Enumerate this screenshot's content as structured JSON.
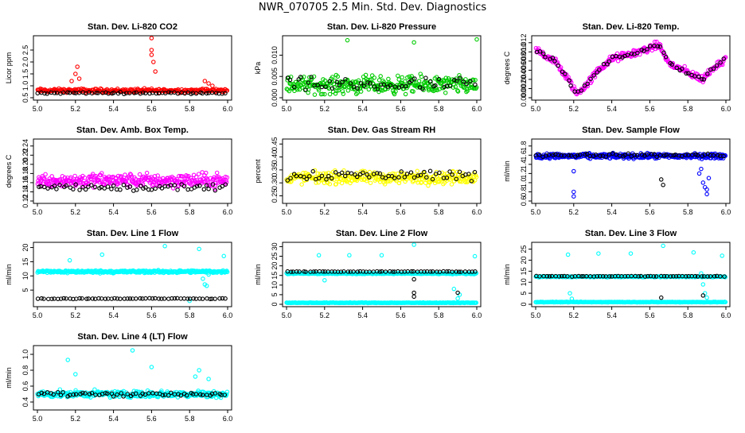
{
  "page_title": "NWR_070705  2.5 Min. Std. Dev. Diagnostics",
  "colors": {
    "red": "#ff0000",
    "green": "#00cc00",
    "magenta": "#ff00ff",
    "yellow": "#ffff00",
    "blue": "#0000ff",
    "cyan": "#00ffff",
    "black": "#000000"
  },
  "chart_data": [
    {
      "type": "scatter",
      "title": "Stan. Dev. Li-820 CO2",
      "ylabel": "Licor ppm",
      "xlim": [
        5.0,
        6.0
      ],
      "xticks": [
        "5.0",
        "5.2",
        "5.4",
        "5.6",
        "5.8",
        "6.0"
      ],
      "ylim": [
        0.5,
        3.0
      ],
      "yticks": [
        0.5,
        1.0,
        1.5,
        2.0,
        2.5
      ],
      "yticklabels": [
        "0.5",
        "1.0",
        "1.5",
        "2.0",
        "2.5"
      ],
      "series": [
        {
          "name": "all",
          "color": "red",
          "base": 0.8,
          "noise": 0.12,
          "n": 260,
          "extra_x": [
            5.2,
            5.21,
            5.22,
            5.18,
            5.6,
            5.6,
            5.61,
            5.62,
            5.6,
            5.88,
            5.9,
            5.92
          ],
          "extra_y": [
            1.5,
            1.8,
            1.3,
            1.2,
            3.0,
            2.3,
            2.0,
            1.6,
            2.5,
            1.2,
            1.1,
            1.0
          ]
        },
        {
          "name": "selected",
          "color": "black",
          "base": 0.7,
          "noise": 0.05,
          "n": 60
        }
      ]
    },
    {
      "type": "scatter",
      "title": "Stan. Dev. Li-820 Pressure",
      "ylabel": "kPa",
      "xlim": [
        5.0,
        6.0
      ],
      "xticks": [
        "5.0",
        "5.2",
        "5.4",
        "5.6",
        "5.8",
        "6.0"
      ],
      "ylim": [
        0.0,
        0.014
      ],
      "yticks": [
        0.0,
        0.005,
        0.01
      ],
      "yticklabels": [
        "0.000",
        "0.005",
        "0.010"
      ],
      "series": [
        {
          "name": "all",
          "color": "green",
          "base": 0.003,
          "noise": 0.003,
          "n": 320,
          "extra_x": [
            5.32,
            5.67,
            6.0
          ],
          "extra_y": [
            0.0135,
            0.013,
            0.0137
          ]
        },
        {
          "name": "selected",
          "color": "black",
          "base": 0.003,
          "noise": 0.0025,
          "n": 55
        }
      ]
    },
    {
      "type": "scatter",
      "title": "Stan. Dev. Li-820 Temp.",
      "ylabel": "degrees C",
      "xlim": [
        5.0,
        6.0
      ],
      "xticks": [
        "5.0",
        "5.2",
        "5.4",
        "5.6",
        "5.8",
        "6.0"
      ],
      "ylim": [
        0.0,
        0.013
      ],
      "yticks": [
        0.0,
        0.002,
        0.004,
        0.006,
        0.008,
        0.01,
        0.012
      ],
      "yticklabels": [
        "0.000",
        "0.002",
        "0.004",
        "0.006",
        "0.008",
        "0.010",
        "0.012"
      ],
      "series": [
        {
          "name": "all",
          "color": "magenta",
          "trend": "temp",
          "noise": 0.0012,
          "n": 280
        },
        {
          "name": "selected",
          "color": "black",
          "trend": "temp",
          "noise": 0.0006,
          "n": 60
        }
      ]
    },
    {
      "type": "scatter",
      "title": "Stan. Dev. Amb. Box Temp.",
      "ylabel": "degrees C",
      "xlim": [
        5.0,
        6.0
      ],
      "xticks": [
        "5.0",
        "5.2",
        "5.4",
        "5.6",
        "5.8",
        "6.0"
      ],
      "ylim": [
        0.12,
        0.25
      ],
      "yticks": [
        0.12,
        0.14,
        0.16,
        0.18,
        0.2,
        0.22,
        0.24
      ],
      "yticklabels": [
        "0.12",
        "0.14",
        "0.16",
        "0.18",
        "0.20",
        "0.22",
        "0.24"
      ],
      "series": [
        {
          "name": "all",
          "color": "magenta",
          "base": 0.165,
          "noise": 0.022,
          "n": 320
        },
        {
          "name": "selected",
          "color": "black",
          "base": 0.15,
          "noise": 0.012,
          "n": 60
        }
      ]
    },
    {
      "type": "scatter",
      "title": "Stan. Dev. Gas Stream RH",
      "ylabel": "percent",
      "xlim": [
        5.0,
        6.0
      ],
      "xticks": [
        "5.0",
        "5.2",
        "5.4",
        "5.6",
        "5.8",
        "6.0"
      ],
      "ylim": [
        0.23,
        0.46
      ],
      "yticks": [
        0.25,
        0.3,
        0.35,
        0.4,
        0.45
      ],
      "yticklabels": [
        "0.25",
        "0.30",
        "0.35",
        "0.40",
        "0.45"
      ],
      "series": [
        {
          "name": "all",
          "color": "yellow",
          "base": 0.32,
          "noise": 0.035,
          "n": 300
        },
        {
          "name": "selected",
          "color": "black",
          "base": 0.33,
          "noise": 0.03,
          "n": 60
        }
      ]
    },
    {
      "type": "scatter",
      "title": "Stan. Dev. Sample Flow",
      "ylabel": "ml/min",
      "xlim": [
        5.0,
        6.0
      ],
      "xticks": [
        "5.0",
        "5.2",
        "5.4",
        "5.6",
        "5.8",
        "6.0"
      ],
      "ylim": [
        0.6,
        1.9
      ],
      "yticks": [
        0.6,
        0.8,
        1.0,
        1.2,
        1.4,
        1.6,
        1.8
      ],
      "yticklabels": [
        "0.6",
        "0.8",
        "1.0",
        "1.2",
        "1.4",
        "1.6",
        "1.8"
      ],
      "series": [
        {
          "name": "all",
          "color": "blue",
          "base": 1.58,
          "noise": 0.08,
          "n": 340,
          "extra_x": [
            5.2,
            5.2,
            5.2,
            5.88,
            5.89,
            5.9,
            5.9,
            5.91,
            5.86,
            5.87
          ],
          "extra_y": [
            0.8,
            0.7,
            1.25,
            1.0,
            0.9,
            0.85,
            0.75,
            1.1,
            1.2,
            1.3
          ]
        },
        {
          "name": "selected",
          "color": "black",
          "base": 1.6,
          "noise": 0.05,
          "n": 60,
          "extra_x": [
            5.66,
            5.67
          ],
          "extra_y": [
            1.07,
            0.95
          ]
        }
      ]
    },
    {
      "type": "scatter",
      "title": "Stan. Dev. Line 1 Flow",
      "ylabel": "ml/min",
      "xlim": [
        5.0,
        6.0
      ],
      "xticks": [
        "5.0",
        "5.2",
        "5.4",
        "5.6",
        "5.8",
        "6.0"
      ],
      "ylim": [
        0,
        21
      ],
      "yticks": [
        5,
        10,
        15,
        20
      ],
      "yticklabels": [
        "5",
        "10",
        "15",
        "20"
      ],
      "series": [
        {
          "name": "all",
          "color": "cyan",
          "base": 11.5,
          "noise": 0.7,
          "n": 320,
          "extra_x": [
            5.17,
            5.34,
            5.67,
            5.85,
            5.87,
            5.88,
            5.89,
            5.9,
            5.8,
            5.98
          ],
          "extra_y": [
            15.5,
            17.5,
            20.5,
            19.5,
            9.0,
            7.0,
            6.5,
            10.5,
            1.2,
            17.0
          ]
        },
        {
          "name": "selected",
          "color": "black",
          "base": 2.0,
          "noise": 0.2,
          "n": 60
        }
      ]
    },
    {
      "type": "scatter",
      "title": "Stan. Dev. Line 2 Flow",
      "ylabel": "ml/min",
      "xlim": [
        5.0,
        6.0
      ],
      "xticks": [
        "5.0",
        "5.2",
        "5.4",
        "5.6",
        "5.8",
        "6.0"
      ],
      "ylim": [
        0,
        31
      ],
      "yticks": [
        0,
        5,
        10,
        15,
        20,
        25,
        30
      ],
      "yticklabels": [
        "0",
        "5",
        "10",
        "15",
        "20",
        "25",
        "30"
      ],
      "series": [
        {
          "name": "all",
          "color": "cyan",
          "base": 16.0,
          "noise": 0.4,
          "n": 280,
          "extra_x": [
            5.17,
            5.33,
            5.5,
            5.67,
            5.88,
            5.9,
            5.91,
            5.99,
            5.2
          ],
          "extra_y": [
            25.5,
            25.5,
            25.5,
            31.0,
            8.0,
            3.0,
            5.0,
            25.0,
            12.5
          ]
        },
        {
          "name": "lower",
          "color": "cyan",
          "base": 0.8,
          "noise": 0.2,
          "n": 260
        },
        {
          "name": "selected",
          "color": "black",
          "base": 17.0,
          "noise": 0.2,
          "n": 60,
          "extra_x": [
            5.67,
            5.67,
            5.67,
            5.9
          ],
          "extra_y": [
            13.0,
            6.0,
            4.0,
            6.0
          ]
        }
      ]
    },
    {
      "type": "scatter",
      "title": "Stan. Dev. Line 3 Flow",
      "ylabel": "ml/min",
      "xlim": [
        5.0,
        6.0
      ],
      "xticks": [
        "5.0",
        "5.2",
        "5.4",
        "5.6",
        "5.8",
        "6.0"
      ],
      "ylim": [
        0,
        27
      ],
      "yticks": [
        0,
        5,
        10,
        15,
        20,
        25
      ],
      "yticklabels": [
        "0",
        "5",
        "10",
        "15",
        "20",
        "25"
      ],
      "series": [
        {
          "name": "all",
          "color": "cyan",
          "base": 12.5,
          "noise": 0.3,
          "n": 280,
          "extra_x": [
            5.17,
            5.18,
            5.19,
            5.33,
            5.5,
            5.67,
            5.83,
            5.87,
            5.88,
            5.89,
            5.9,
            5.98
          ],
          "extra_y": [
            22.5,
            5.0,
            2.5,
            23.0,
            23.0,
            26.5,
            23.5,
            14.0,
            9.0,
            5.0,
            3.0,
            22.0
          ]
        },
        {
          "name": "lower",
          "color": "cyan",
          "base": 1.0,
          "noise": 0.2,
          "n": 260
        },
        {
          "name": "selected",
          "color": "black",
          "base": 12.7,
          "noise": 0.2,
          "n": 60,
          "extra_x": [
            5.66,
            5.88
          ],
          "extra_y": [
            3.0,
            4.0
          ]
        }
      ]
    },
    {
      "type": "scatter",
      "title": "Stan. Dev. Line 4 (LT) Flow",
      "ylabel": "ml/min",
      "xlim": [
        5.0,
        6.0
      ],
      "xticks": [
        "5.0",
        "5.2",
        "5.4",
        "5.6",
        "5.8",
        "6.0"
      ],
      "ylim": [
        0.33,
        1.08
      ],
      "yticks": [
        0.4,
        0.6,
        0.8,
        1.0
      ],
      "yticklabels": [
        "0.4",
        "0.6",
        "0.8",
        "1.0"
      ],
      "series": [
        {
          "name": "all",
          "color": "cyan",
          "base": 0.5,
          "noise": 0.06,
          "n": 330,
          "extra_x": [
            5.16,
            5.5,
            5.6,
            5.85,
            5.2,
            5.83,
            5.9
          ],
          "extra_y": [
            0.93,
            1.05,
            0.84,
            0.8,
            0.75,
            0.72,
            0.69
          ]
        },
        {
          "name": "selected",
          "color": "black",
          "base": 0.5,
          "noise": 0.04,
          "n": 60
        }
      ]
    }
  ]
}
